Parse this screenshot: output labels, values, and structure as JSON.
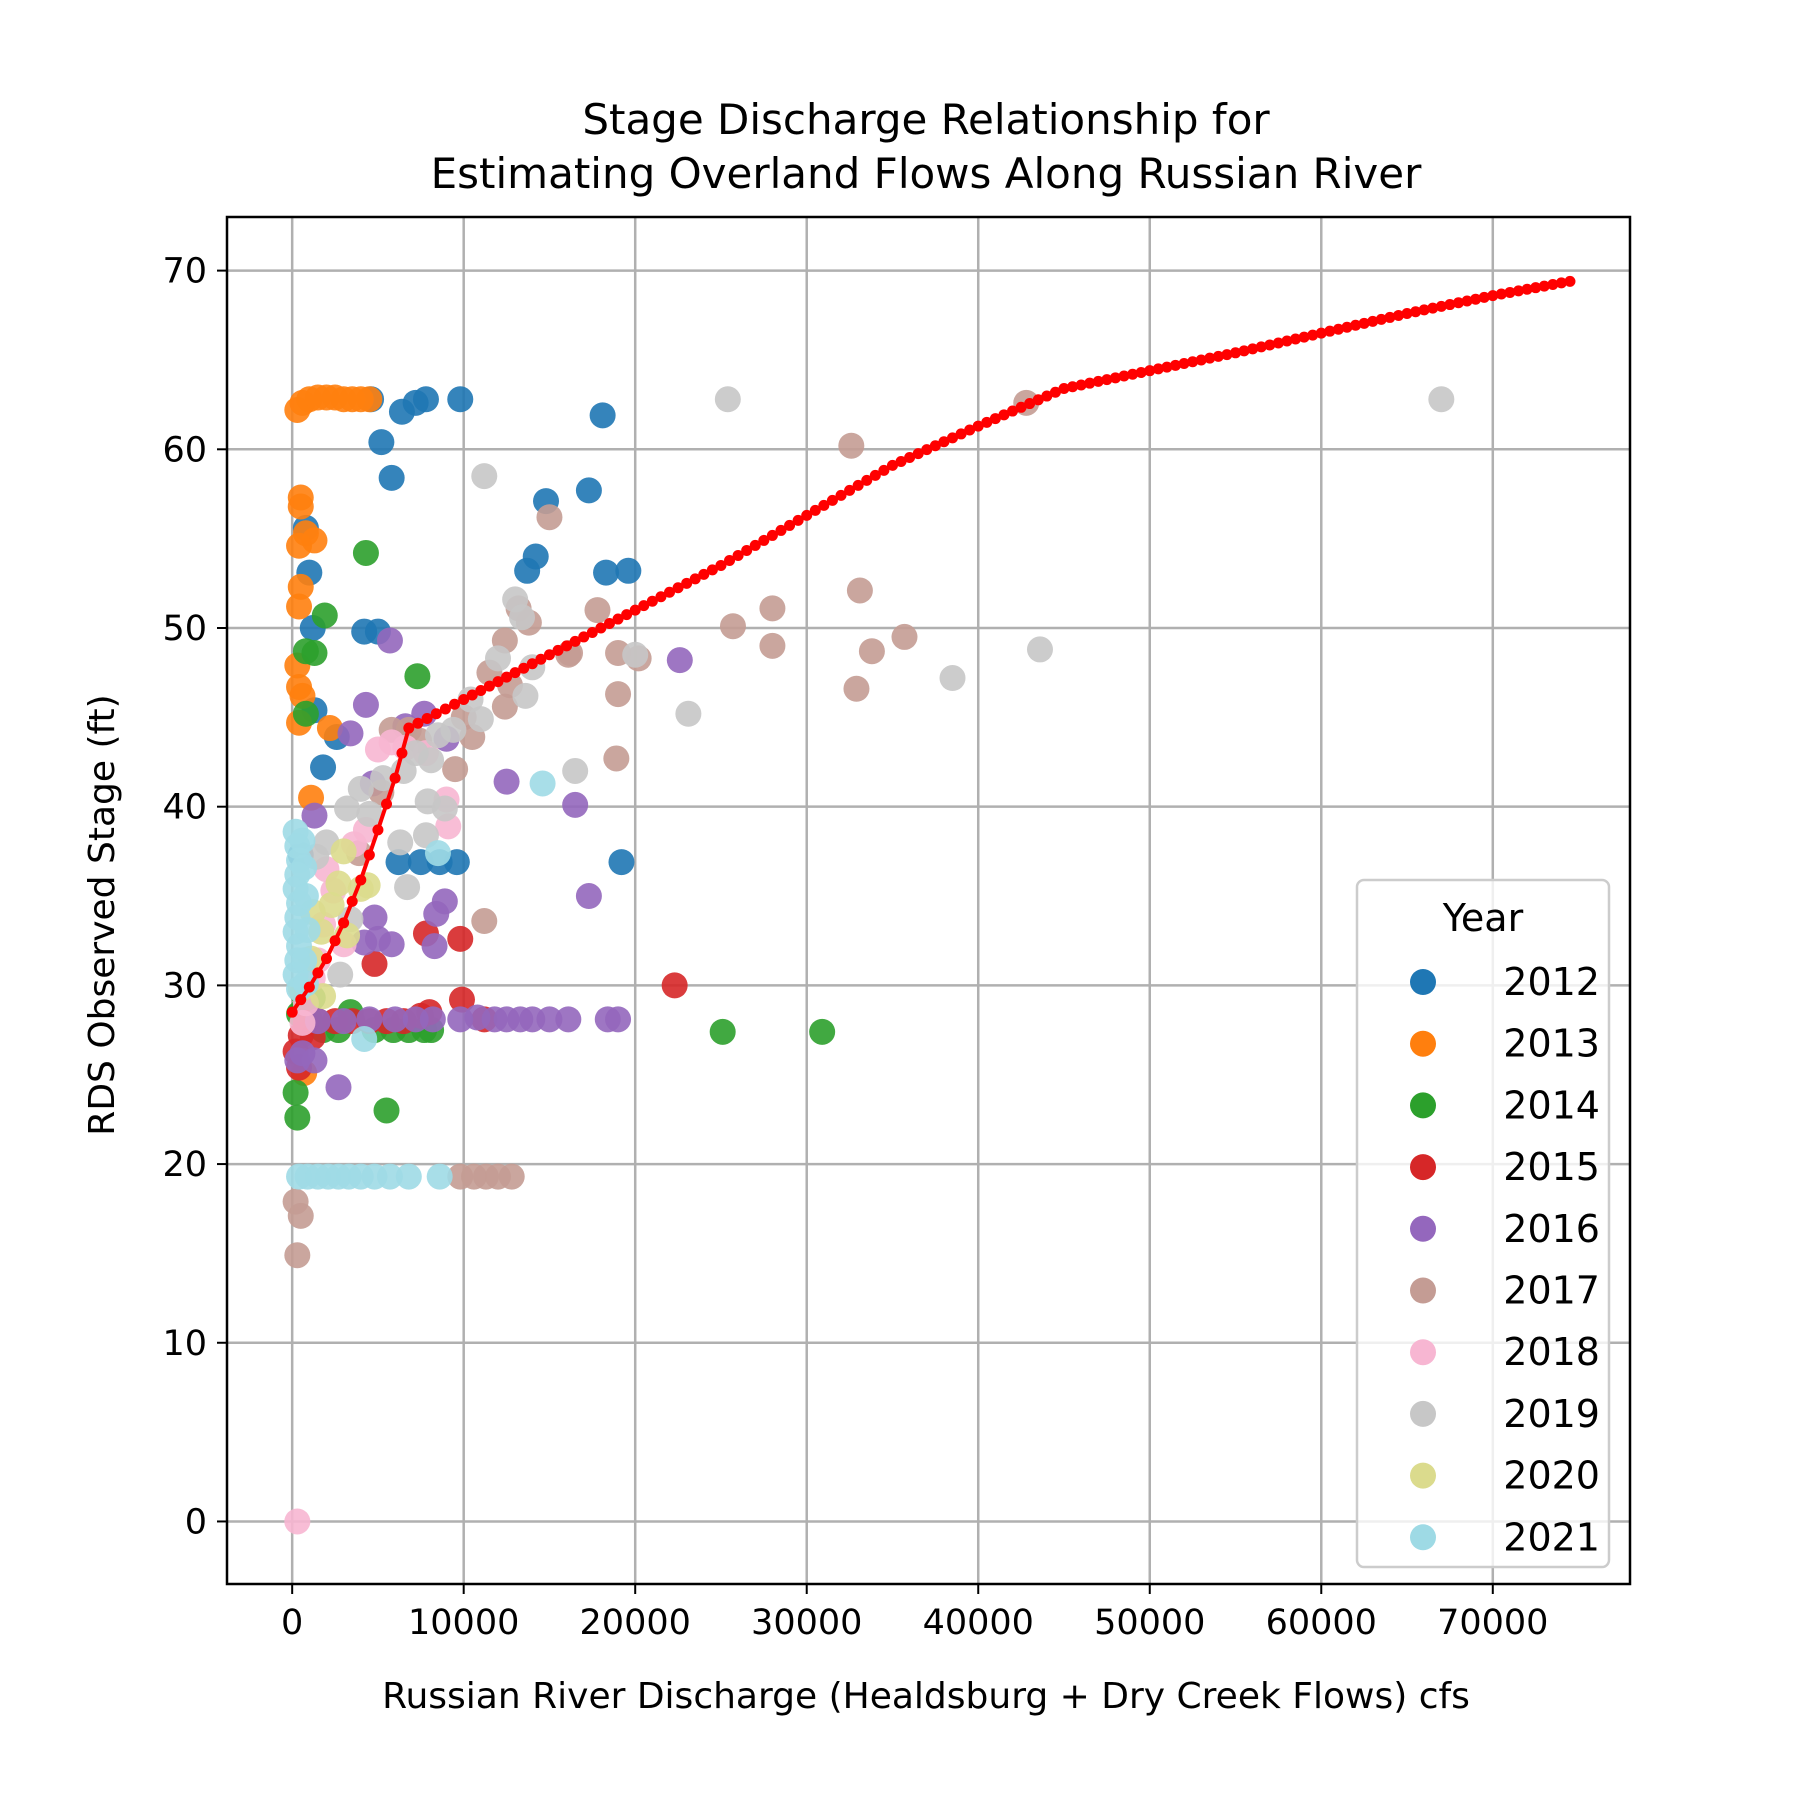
{
  "chart_data": {
    "type": "scatter",
    "title_lines": [
      "Stage Discharge Relationship for",
      "Estimating Overland Flows Along Russian River"
    ],
    "xlabel": "Russian River Discharge (Healdsburg + Dry Creek Flows) cfs",
    "ylabel": "RDS Observed Stage (ft)",
    "xlim": [
      -3800,
      78000
    ],
    "ylim": [
      -3.5,
      73
    ],
    "xticks": [
      0,
      10000,
      20000,
      30000,
      40000,
      50000,
      60000,
      70000
    ],
    "yticks": [
      0,
      10,
      20,
      30,
      40,
      50,
      60,
      70
    ],
    "xtick_labels": [
      "0",
      "10000",
      "20000",
      "30000",
      "40000",
      "50000",
      "60000",
      "70000"
    ],
    "ytick_labels": [
      "0",
      "10",
      "20",
      "30",
      "40",
      "50",
      "60",
      "70"
    ],
    "grid": true,
    "legend": {
      "title": "Year",
      "placement": "lower-right"
    },
    "series": [
      {
        "name": "2012",
        "color": "#1f77b4",
        "points": [
          [
            4600,
            62.8
          ],
          [
            6400,
            62.1
          ],
          [
            7200,
            62.6
          ],
          [
            7800,
            62.8
          ],
          [
            9800,
            62.8
          ],
          [
            18100,
            61.9
          ],
          [
            5200,
            60.4
          ],
          [
            5800,
            58.4
          ],
          [
            14800,
            57.1
          ],
          [
            17300,
            57.7
          ],
          [
            800,
            55.6
          ],
          [
            1000,
            53.1
          ],
          [
            13700,
            53.2
          ],
          [
            14200,
            54.0
          ],
          [
            18300,
            53.1
          ],
          [
            19600,
            53.2
          ],
          [
            1200,
            50.0
          ],
          [
            4200,
            49.8
          ],
          [
            5000,
            49.8
          ],
          [
            1300,
            45.4
          ],
          [
            1800,
            42.2
          ],
          [
            2600,
            43.9
          ],
          [
            6200,
            36.9
          ],
          [
            7500,
            36.9
          ],
          [
            8600,
            36.9
          ],
          [
            9600,
            36.9
          ],
          [
            19200,
            36.9
          ],
          [
            500,
            37.3
          ]
        ]
      },
      {
        "name": "2013",
        "color": "#ff7f0e",
        "points": [
          [
            300,
            62.2
          ],
          [
            600,
            62.6
          ],
          [
            1000,
            62.8
          ],
          [
            1500,
            62.9
          ],
          [
            2000,
            62.9
          ],
          [
            2500,
            62.9
          ],
          [
            3000,
            62.8
          ],
          [
            3500,
            62.8
          ],
          [
            4000,
            62.8
          ],
          [
            4500,
            62.8
          ],
          [
            500,
            57.3
          ],
          [
            500,
            56.8
          ],
          [
            800,
            55.3
          ],
          [
            400,
            54.6
          ],
          [
            1300,
            54.9
          ],
          [
            500,
            52.3
          ],
          [
            400,
            51.2
          ],
          [
            300,
            47.9
          ],
          [
            400,
            46.7
          ],
          [
            600,
            46.2
          ],
          [
            400,
            44.7
          ],
          [
            2200,
            44.4
          ],
          [
            1100,
            40.5
          ],
          [
            700,
            25.1
          ]
        ]
      },
      {
        "name": "2014",
        "color": "#2ca02c",
        "points": [
          [
            4300,
            54.2
          ],
          [
            1900,
            50.7
          ],
          [
            800,
            48.7
          ],
          [
            1300,
            48.6
          ],
          [
            800,
            45.2
          ],
          [
            7300,
            47.3
          ],
          [
            400,
            28.4
          ],
          [
            600,
            28.6
          ],
          [
            1000,
            28.1
          ],
          [
            1800,
            27.5
          ],
          [
            2700,
            27.5
          ],
          [
            3400,
            28.5
          ],
          [
            4800,
            27.5
          ],
          [
            5900,
            27.5
          ],
          [
            6800,
            27.5
          ],
          [
            7700,
            27.5
          ],
          [
            8100,
            27.5
          ],
          [
            25100,
            27.4
          ],
          [
            30900,
            27.4
          ],
          [
            200,
            24.0
          ],
          [
            300,
            22.6
          ],
          [
            5500,
            23.0
          ],
          [
            600,
            29.6
          ],
          [
            1200,
            29.3
          ]
        ]
      },
      {
        "name": "2015",
        "color": "#d62728",
        "points": [
          [
            200,
            26.3
          ],
          [
            400,
            25.4
          ],
          [
            500,
            27.2
          ],
          [
            800,
            27.9
          ],
          [
            1500,
            28.0
          ],
          [
            2500,
            28.0
          ],
          [
            3500,
            28.0
          ],
          [
            4500,
            28.0
          ],
          [
            5500,
            28.0
          ],
          [
            6500,
            28.0
          ],
          [
            7500,
            28.3
          ],
          [
            8000,
            28.5
          ],
          [
            9900,
            29.2
          ],
          [
            11200,
            28.1
          ],
          [
            4800,
            31.2
          ],
          [
            7800,
            32.9
          ],
          [
            9800,
            32.6
          ],
          [
            22300,
            30.0
          ],
          [
            1200,
            27.1
          ]
        ]
      },
      {
        "name": "2016",
        "color": "#9467bd",
        "points": [
          [
            300,
            25.8
          ],
          [
            600,
            26.2
          ],
          [
            1300,
            25.8
          ],
          [
            2700,
            24.3
          ],
          [
            1500,
            28.0
          ],
          [
            3000,
            28.0
          ],
          [
            4500,
            28.1
          ],
          [
            6000,
            28.1
          ],
          [
            7200,
            28.1
          ],
          [
            8200,
            28.1
          ],
          [
            9800,
            28.1
          ],
          [
            10800,
            28.2
          ],
          [
            11800,
            28.1
          ],
          [
            12500,
            28.1
          ],
          [
            13300,
            28.1
          ],
          [
            14000,
            28.1
          ],
          [
            15000,
            28.1
          ],
          [
            16100,
            28.1
          ],
          [
            18400,
            28.1
          ],
          [
            19000,
            28.1
          ],
          [
            4200,
            32.4
          ],
          [
            5000,
            32.6
          ],
          [
            5800,
            32.3
          ],
          [
            4800,
            33.8
          ],
          [
            8300,
            32.2
          ],
          [
            8400,
            34.0
          ],
          [
            8900,
            34.7
          ],
          [
            17300,
            35.0
          ],
          [
            16500,
            40.1
          ],
          [
            12500,
            41.4
          ],
          [
            4700,
            41.3
          ],
          [
            22600,
            48.2
          ],
          [
            5700,
            49.3
          ],
          [
            4300,
            45.7
          ],
          [
            3400,
            44.1
          ],
          [
            7700,
            45.2
          ],
          [
            6600,
            44.5
          ],
          [
            1300,
            39.5
          ],
          [
            9000,
            43.8
          ]
        ]
      },
      {
        "name": "2017",
        "color": "#c49c94",
        "points": [
          [
            200,
            17.9
          ],
          [
            500,
            17.1
          ],
          [
            300,
            14.9
          ],
          [
            9800,
            19.3
          ],
          [
            10600,
            19.3
          ],
          [
            11300,
            19.3
          ],
          [
            12000,
            19.3
          ],
          [
            12800,
            19.3
          ],
          [
            11200,
            33.6
          ],
          [
            9500,
            42.1
          ],
          [
            12400,
            45.6
          ],
          [
            12700,
            46.8
          ],
          [
            19000,
            46.3
          ],
          [
            18900,
            42.7
          ],
          [
            19000,
            48.6
          ],
          [
            20200,
            48.3
          ],
          [
            16100,
            48.5
          ],
          [
            16200,
            48.6
          ],
          [
            17800,
            51.0
          ],
          [
            25700,
            50.1
          ],
          [
            28000,
            51.1
          ],
          [
            28000,
            49.0
          ],
          [
            33100,
            52.1
          ],
          [
            32900,
            46.6
          ],
          [
            33800,
            48.7
          ],
          [
            35700,
            49.5
          ],
          [
            32600,
            60.2
          ],
          [
            15000,
            56.2
          ],
          [
            13200,
            51.1
          ],
          [
            13800,
            50.3
          ],
          [
            12400,
            49.3
          ],
          [
            42800,
            62.6
          ],
          [
            10000,
            45.0
          ],
          [
            11500,
            47.5
          ],
          [
            6800,
            44.3
          ],
          [
            5800,
            44.3
          ],
          [
            5200,
            40.8
          ],
          [
            3900,
            37.4
          ],
          [
            7400,
            43.7
          ],
          [
            10500,
            43.9
          ]
        ]
      },
      {
        "name": "2018",
        "color": "#f7b6d2",
        "points": [
          [
            300,
            0.0
          ],
          [
            600,
            27.9
          ],
          [
            800,
            29.0
          ],
          [
            1200,
            30.4
          ],
          [
            1800,
            33.4
          ],
          [
            2400,
            35.3
          ],
          [
            3000,
            32.3
          ],
          [
            3600,
            37.9
          ],
          [
            4300,
            38.7
          ],
          [
            5000,
            43.2
          ],
          [
            5800,
            43.6
          ],
          [
            6600,
            43.3
          ],
          [
            7800,
            43.0
          ],
          [
            9000,
            40.4
          ],
          [
            9100,
            38.9
          ],
          [
            2000,
            36.5
          ],
          [
            1500,
            31.4
          ]
        ]
      },
      {
        "name": "2019",
        "color": "#c7c7c7",
        "points": [
          [
            25400,
            62.8
          ],
          [
            67000,
            62.8
          ],
          [
            11200,
            58.5
          ],
          [
            13000,
            51.6
          ],
          [
            13400,
            50.6
          ],
          [
            12000,
            48.3
          ],
          [
            14000,
            47.8
          ],
          [
            13600,
            46.2
          ],
          [
            11000,
            44.9
          ],
          [
            10400,
            46.0
          ],
          [
            20000,
            48.5
          ],
          [
            23100,
            45.2
          ],
          [
            38500,
            47.2
          ],
          [
            43600,
            48.8
          ],
          [
            16500,
            42.0
          ],
          [
            8100,
            42.6
          ],
          [
            7200,
            43.0
          ],
          [
            8500,
            44.0
          ],
          [
            6500,
            42.0
          ],
          [
            5300,
            41.6
          ],
          [
            7900,
            40.3
          ],
          [
            8900,
            39.9
          ],
          [
            3200,
            39.9
          ],
          [
            4500,
            39.6
          ],
          [
            7800,
            38.4
          ],
          [
            6300,
            38.0
          ],
          [
            6700,
            35.5
          ],
          [
            2800,
            30.6
          ],
          [
            3400,
            33.7
          ],
          [
            2000,
            38.0
          ],
          [
            1400,
            37.2
          ],
          [
            4000,
            41.0
          ],
          [
            9400,
            44.3
          ]
        ]
      },
      {
        "name": "2020",
        "color": "#dbdb8d",
        "points": [
          [
            500,
            29.8
          ],
          [
            1100,
            31.5
          ],
          [
            1700,
            33.0
          ],
          [
            2300,
            34.5
          ],
          [
            2700,
            35.7
          ],
          [
            3200,
            32.8
          ],
          [
            4000,
            35.4
          ],
          [
            4400,
            35.6
          ],
          [
            1800,
            29.4
          ],
          [
            3000,
            37.5
          ],
          [
            1200,
            34.1
          ]
        ]
      },
      {
        "name": "2021",
        "color": "#9edae5",
        "points": [
          [
            200,
            38.6
          ],
          [
            300,
            37.8
          ],
          [
            400,
            37.0
          ],
          [
            300,
            36.2
          ],
          [
            200,
            35.4
          ],
          [
            400,
            34.6
          ],
          [
            300,
            33.8
          ],
          [
            200,
            33.0
          ],
          [
            400,
            32.2
          ],
          [
            300,
            31.4
          ],
          [
            200,
            30.6
          ],
          [
            400,
            29.8
          ],
          [
            600,
            38.1
          ],
          [
            700,
            36.6
          ],
          [
            800,
            35.0
          ],
          [
            900,
            33.1
          ],
          [
            700,
            31.4
          ],
          [
            800,
            30.1
          ],
          [
            400,
            19.3
          ],
          [
            900,
            19.3
          ],
          [
            1500,
            19.3
          ],
          [
            2100,
            19.3
          ],
          [
            2700,
            19.3
          ],
          [
            3300,
            19.3
          ],
          [
            4000,
            19.3
          ],
          [
            4800,
            19.3
          ],
          [
            5700,
            19.3
          ],
          [
            6800,
            19.3
          ],
          [
            8600,
            19.3
          ],
          [
            4200,
            27.0
          ],
          [
            8500,
            37.4
          ],
          [
            14600,
            41.3
          ]
        ]
      }
    ],
    "fit_curve": {
      "color": "#ff0000",
      "points": [
        [
          0,
          28.5
        ],
        [
          1000,
          29.9
        ],
        [
          2000,
          31.5
        ],
        [
          3000,
          33.5
        ],
        [
          4000,
          35.9
        ],
        [
          5000,
          38.7
        ],
        [
          6000,
          41.6
        ],
        [
          6800,
          44.4
        ],
        [
          10000,
          46.0
        ],
        [
          15000,
          48.5
        ],
        [
          20000,
          51.0
        ],
        [
          25000,
          53.5
        ],
        [
          30000,
          56.3
        ],
        [
          35000,
          59.1
        ],
        [
          40000,
          61.3
        ],
        [
          45000,
          63.4
        ],
        [
          50000,
          64.4
        ],
        [
          55000,
          65.4
        ],
        [
          60000,
          66.5
        ],
        [
          65000,
          67.6
        ],
        [
          70000,
          68.6
        ],
        [
          74500,
          69.4
        ]
      ]
    }
  }
}
